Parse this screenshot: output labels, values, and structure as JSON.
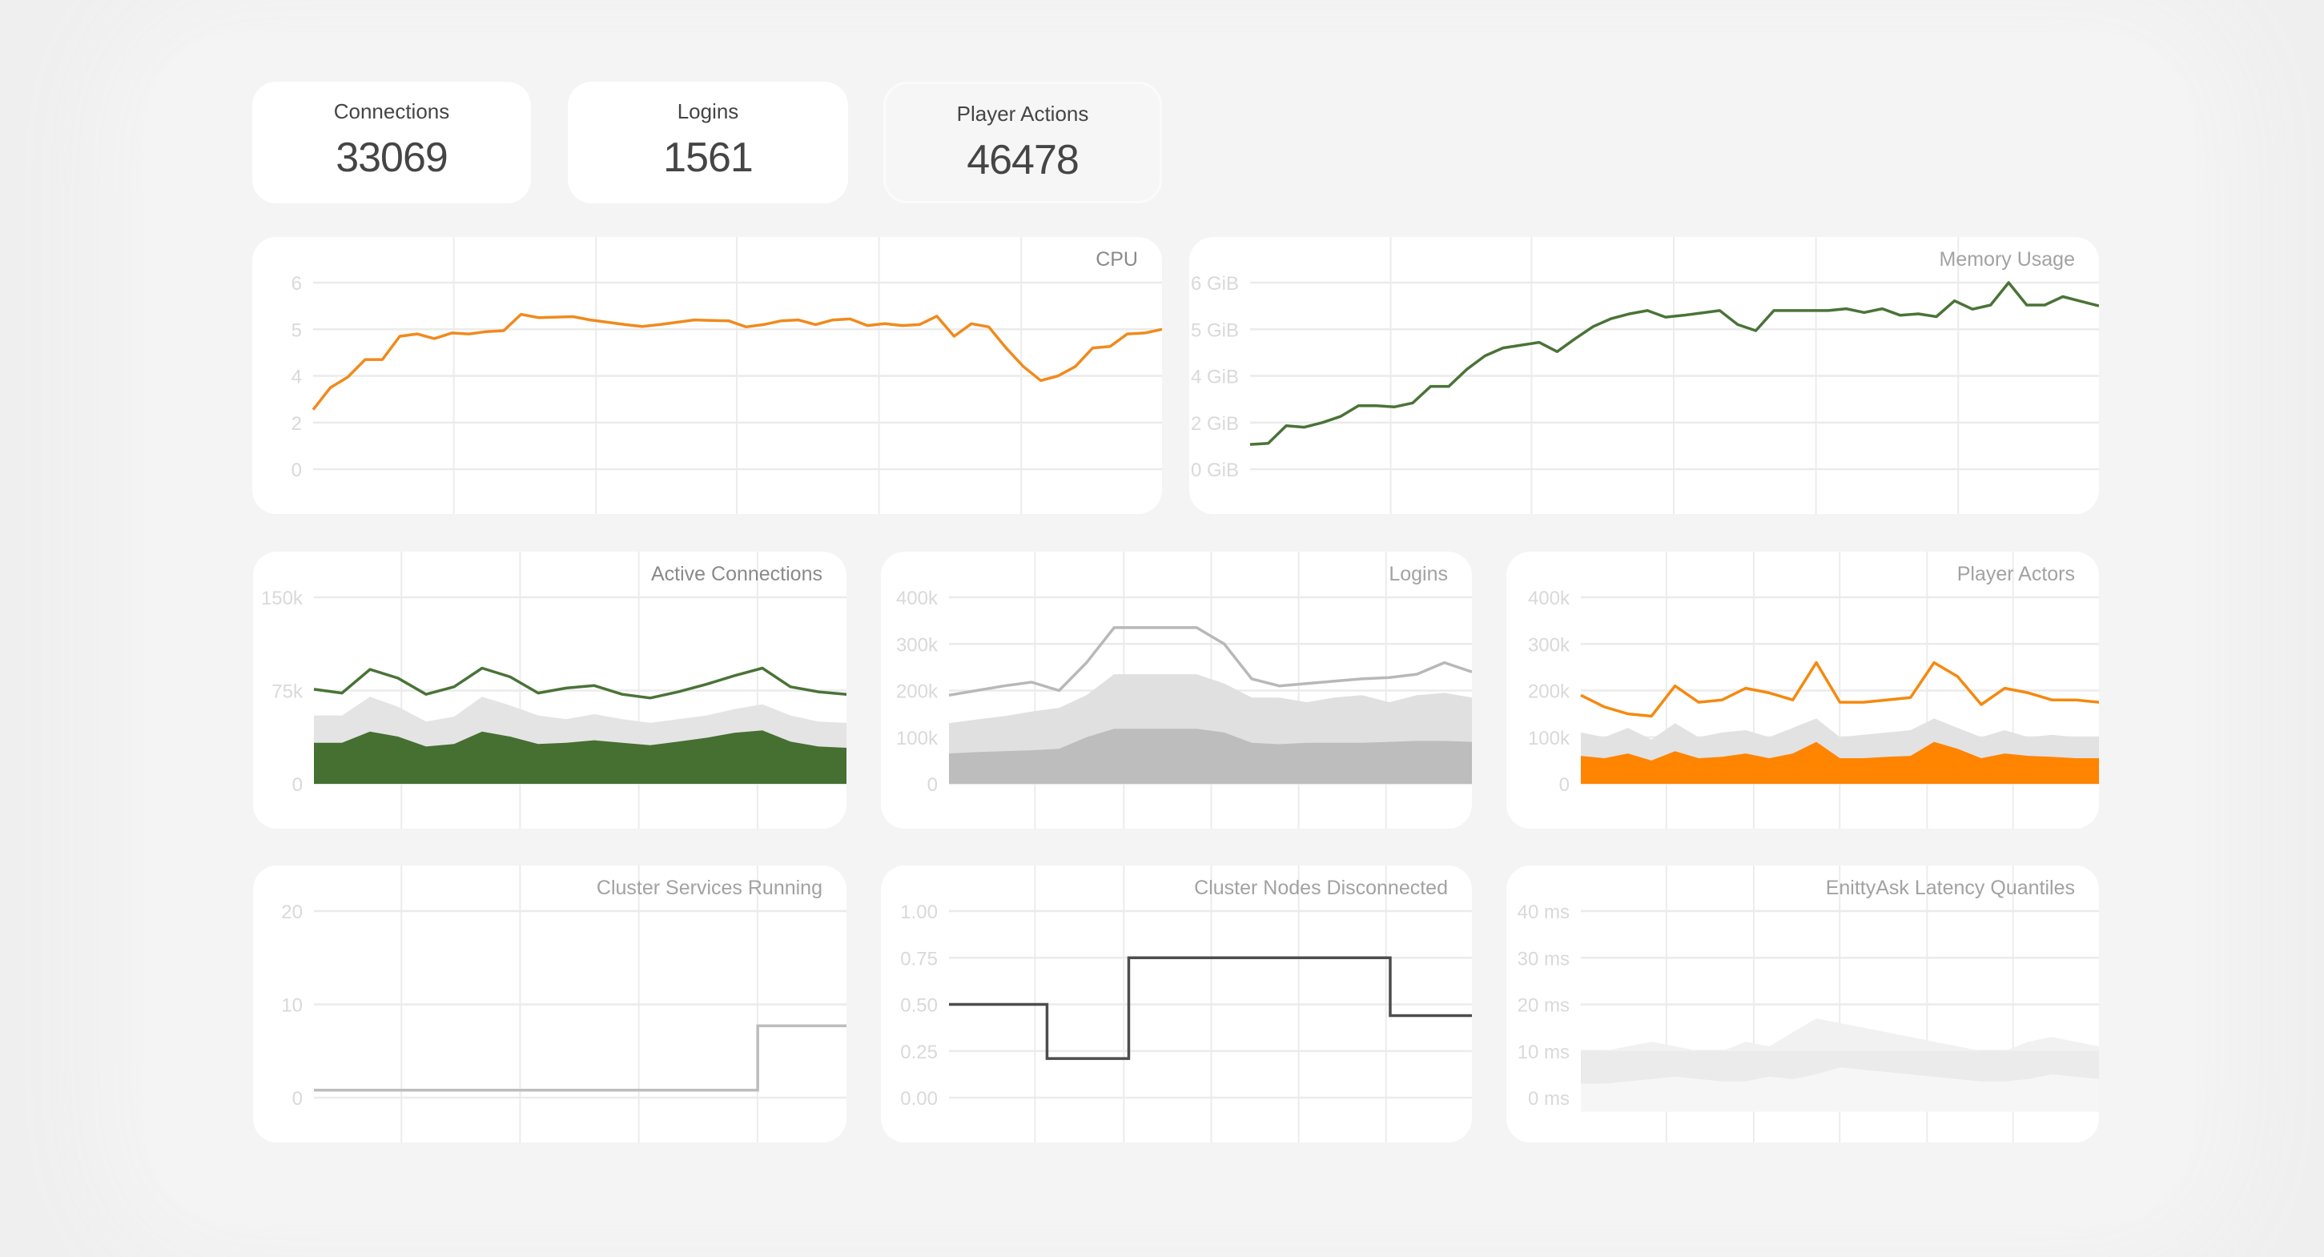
{
  "stats": [
    {
      "label": "Connections",
      "value": "33069"
    },
    {
      "label": "Logins",
      "value": "1561"
    },
    {
      "label": "Player Actions",
      "value": "46478"
    }
  ],
  "chart_data": [
    {
      "type": "line",
      "title": "CPU",
      "ticks": [
        "6",
        "5",
        "4",
        "2",
        "0"
      ],
      "tick_values": [
        6,
        5,
        4,
        2,
        0
      ],
      "grid": true,
      "series": [
        {
          "kind": "line",
          "color": "#f08a1c",
          "values": [
            2.55,
            3.5,
            3.95,
            4.35,
            4.35,
            4.85,
            4.9,
            4.8,
            4.92,
            4.9,
            4.95,
            4.97,
            5.32,
            5.25,
            5.26,
            5.27,
            5.2,
            5.15,
            5.1,
            5.06,
            5.1,
            5.15,
            5.2,
            5.19,
            5.18,
            5.05,
            5.1,
            5.18,
            5.2,
            5.1,
            5.2,
            5.22,
            5.08,
            5.12,
            5.08,
            5.1,
            5.28,
            4.85,
            5.12,
            5.05,
            4.6,
            4.2,
            3.8,
            4.0,
            4.2,
            4.6,
            4.63,
            4.9,
            4.92,
            5.0
          ]
        }
      ]
    },
    {
      "type": "line",
      "title": "Memory Usage",
      "ticks": [
        "6 GiB",
        "5 GiB",
        "4 GiB",
        "2 GiB",
        "0 GiB"
      ],
      "tick_values": [
        6,
        5,
        4,
        2,
        0
      ],
      "grid": true,
      "series": [
        {
          "kind": "line",
          "color": "#4a7337",
          "values": [
            1.06,
            1.11,
            1.86,
            1.8,
            2.0,
            2.26,
            2.72,
            2.72,
            2.67,
            2.84,
            3.55,
            3.55,
            4.14,
            4.43,
            4.6,
            4.66,
            4.72,
            4.52,
            4.8,
            5.06,
            5.23,
            5.33,
            5.4,
            5.26,
            5.3,
            5.35,
            5.4,
            5.1,
            4.97,
            5.4,
            5.4,
            5.4,
            5.4,
            5.44,
            5.36,
            5.44,
            5.3,
            5.33,
            5.27,
            5.61,
            5.43,
            5.52,
            6.0,
            5.52,
            5.52,
            5.7,
            5.6,
            5.5
          ]
        }
      ]
    },
    {
      "type": "area",
      "title": "Active Connections",
      "ticks": [
        "150k",
        "75k",
        "0"
      ],
      "tick_values": [
        150,
        75,
        0
      ],
      "grid": true,
      "series": [
        {
          "kind": "area",
          "color": "#e4e4e4",
          "values": [
            55,
            55,
            70,
            62,
            50,
            54,
            70,
            63,
            55,
            52,
            56,
            52,
            49,
            52,
            55,
            60,
            64,
            55,
            50,
            49
          ]
        },
        {
          "kind": "area",
          "color": "#466f32",
          "values": [
            33,
            33,
            42,
            38,
            30,
            32,
            42,
            38,
            32,
            33,
            35,
            33,
            31,
            34,
            37,
            41,
            43,
            34,
            30,
            29
          ]
        },
        {
          "kind": "line",
          "color": "#4a7337",
          "values": [
            76,
            73,
            92,
            85,
            72,
            78,
            93,
            86,
            73,
            77,
            79,
            72,
            69,
            74,
            80,
            87,
            93,
            78,
            74,
            72
          ]
        }
      ]
    },
    {
      "type": "area",
      "title": "Logins",
      "ticks": [
        "400k",
        "300k",
        "200k",
        "100k",
        "0"
      ],
      "tick_values": [
        400,
        300,
        200,
        100,
        0
      ],
      "grid": true,
      "series": [
        {
          "kind": "area",
          "color": "#e0e0e0",
          "values": [
            130,
            138,
            145,
            155,
            163,
            190,
            235,
            235,
            235,
            235,
            215,
            185,
            185,
            175,
            185,
            190,
            175,
            190,
            195,
            185
          ]
        },
        {
          "kind": "area",
          "color": "#bdbdbd",
          "values": [
            65,
            68,
            70,
            72,
            75,
            100,
            118,
            118,
            118,
            118,
            110,
            88,
            85,
            88,
            88,
            88,
            90,
            92,
            92,
            90
          ]
        },
        {
          "kind": "line",
          "color": "#b8b8b8",
          "values": [
            190,
            200,
            210,
            218,
            200,
            260,
            335,
            335,
            335,
            335,
            300,
            225,
            210,
            215,
            220,
            225,
            228,
            235,
            260,
            240
          ]
        }
      ]
    },
    {
      "type": "area",
      "title": "Player Actors",
      "ticks": [
        "400k",
        "300k",
        "200k",
        "100k",
        "0"
      ],
      "tick_values": [
        400,
        300,
        200,
        100,
        0
      ],
      "grid": true,
      "series": [
        {
          "kind": "area",
          "color": "#e2e2e2",
          "values": [
            110,
            100,
            120,
            95,
            130,
            100,
            110,
            115,
            100,
            120,
            140,
            100,
            105,
            110,
            115,
            140,
            120,
            100,
            115,
            100,
            105,
            100,
            100
          ]
        },
        {
          "kind": "area",
          "color": "#ff8400",
          "values": [
            60,
            55,
            65,
            50,
            70,
            55,
            58,
            65,
            55,
            65,
            90,
            55,
            55,
            58,
            60,
            90,
            75,
            55,
            65,
            60,
            58,
            55,
            55
          ]
        },
        {
          "kind": "line",
          "color": "#f5890f",
          "values": [
            190,
            165,
            150,
            145,
            210,
            175,
            180,
            205,
            195,
            180,
            260,
            175,
            175,
            180,
            185,
            260,
            230,
            170,
            205,
            195,
            180,
            180,
            175
          ]
        }
      ]
    },
    {
      "type": "line",
      "title": "Cluster Services Running",
      "ticks": [
        "20",
        "10",
        "0"
      ],
      "tick_values": [
        20,
        10,
        0
      ],
      "grid": true,
      "series": [
        {
          "kind": "step",
          "color": "#bdbdbd",
          "values": [
            0.8,
            0.8,
            0.8,
            0.8,
            0.8,
            0.8,
            0.8,
            0.8,
            0.8,
            0.8,
            7.7,
            7.7
          ]
        }
      ]
    },
    {
      "type": "line",
      "title": "Cluster Nodes Disconnected",
      "ticks": [
        "1.00",
        "0.75",
        "0.50",
        "0.25",
        "0.00"
      ],
      "tick_values": [
        1,
        0.75,
        0.5,
        0.25,
        0
      ],
      "grid": true,
      "series": [
        {
          "kind": "step",
          "color": "#4d4d4d",
          "values": [
            0.5,
            0.5,
            0.5,
            0.5,
            0.5,
            0.5,
            0.21,
            0.21,
            0.21,
            0.21,
            0.21,
            0.75,
            0.75,
            0.75,
            0.75,
            0.75,
            0.75,
            0.75,
            0.75,
            0.75,
            0.75,
            0.75,
            0.75,
            0.75,
            0.75,
            0.75,
            0.75,
            0.44,
            0.44,
            0.44,
            0.44,
            0.44
          ]
        }
      ]
    },
    {
      "type": "area",
      "title": "EnittyAsk Latency Quantiles",
      "ticks": [
        "40 ms",
        "30 ms",
        "20 ms",
        "10 ms",
        "0 ms"
      ],
      "tick_values": [
        40,
        30,
        20,
        10,
        0
      ],
      "grid": true,
      "series": [
        {
          "kind": "area",
          "color": "#f1f1f1",
          "base": -3,
          "values": [
            10,
            10,
            11,
            12,
            11,
            10,
            10,
            12,
            11,
            14,
            17,
            16,
            15,
            14,
            13,
            12,
            11,
            10,
            10,
            12,
            13,
            12,
            11
          ]
        },
        {
          "kind": "area",
          "color": "#ebebeb",
          "base": -3,
          "values": [
            10,
            10,
            10,
            10,
            10,
            10,
            10,
            10,
            10,
            10,
            10,
            10,
            10,
            10,
            10,
            10,
            10,
            10,
            10,
            10,
            10,
            10,
            10
          ]
        },
        {
          "kind": "area",
          "color": "#f6f6f6",
          "base": -3,
          "values": [
            3,
            3,
            3.5,
            4,
            4.5,
            4,
            3.5,
            3.5,
            4.5,
            4,
            5,
            6.5,
            6,
            5.5,
            5,
            4.5,
            4,
            3.5,
            3.5,
            4,
            5,
            4.5,
            4
          ]
        }
      ]
    }
  ]
}
